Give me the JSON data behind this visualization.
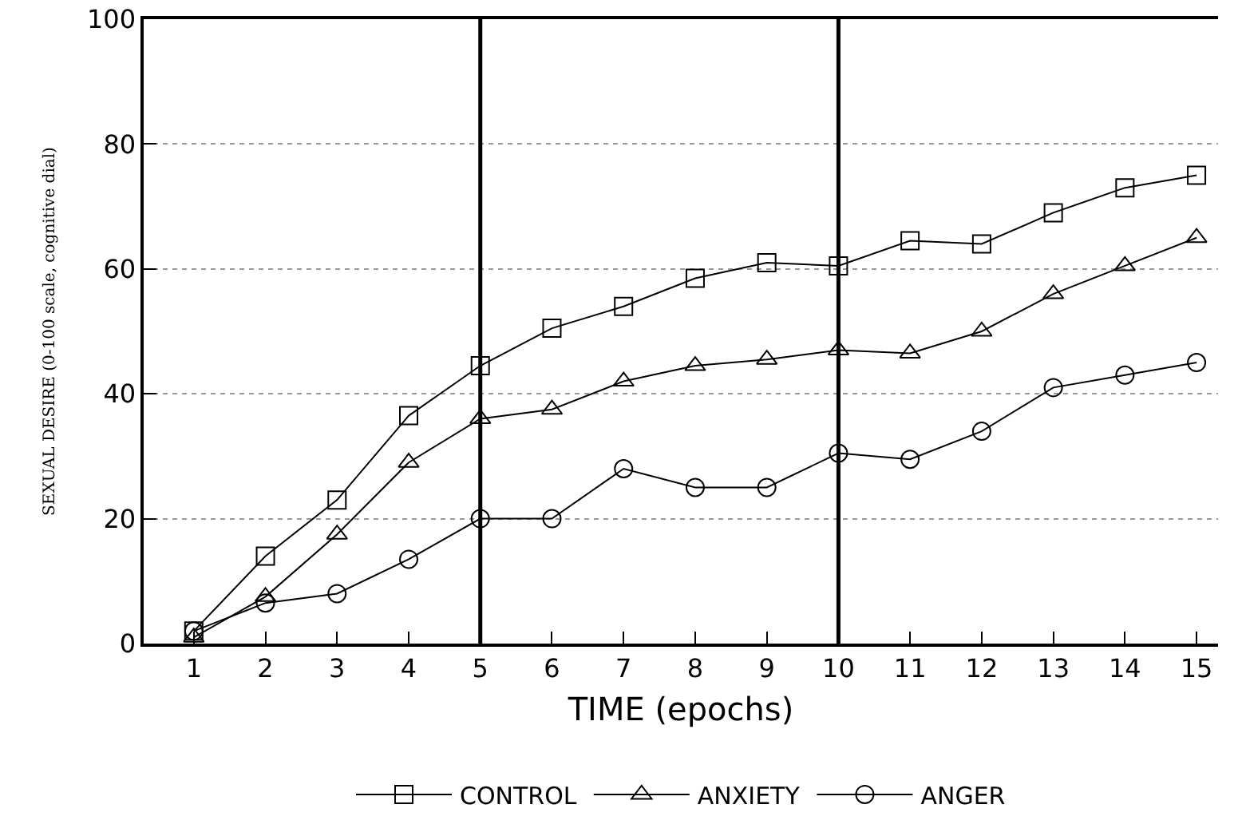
{
  "chart_data": {
    "type": "line",
    "xlabel": "TIME (epochs)",
    "ylabel": "SEXUAL DESIRE (0-100 scale, cognitive dial)",
    "x": [
      1,
      2,
      3,
      4,
      5,
      6,
      7,
      8,
      9,
      10,
      11,
      12,
      13,
      14,
      15
    ],
    "series": [
      {
        "name": "CONTROL",
        "color": "#000000",
        "marker": "square",
        "values": [
          2,
          14,
          23,
          36.5,
          44.5,
          50.5,
          54,
          58.5,
          61,
          60.5,
          64.5,
          64,
          69,
          73,
          75
        ]
      },
      {
        "name": "ANXIETY",
        "color": "#000000",
        "marker": "triangle",
        "values": [
          1,
          7.5,
          17.5,
          29,
          36,
          37.5,
          42,
          44.5,
          45.5,
          47,
          46.5,
          50,
          56,
          60.5,
          65
        ]
      },
      {
        "name": "ANGER",
        "color": "#000000",
        "marker": "circle",
        "values": [
          2,
          6.5,
          8,
          13.5,
          20,
          20,
          28,
          25,
          25,
          30.5,
          29.5,
          34,
          41,
          43,
          45
        ]
      }
    ],
    "xlim": [
      0.3,
      15.3
    ],
    "xticks": [
      1,
      2,
      3,
      4,
      5,
      6,
      7,
      8,
      9,
      10,
      11,
      12,
      13,
      14,
      15
    ],
    "ylim": [
      0,
      100
    ],
    "yticks": [
      0,
      20,
      40,
      60,
      80,
      100
    ],
    "ref_lines": [
      {
        "axis": "x",
        "value": 5,
        "color": "#000000"
      },
      {
        "axis": "x",
        "value": 10,
        "color": "#000000"
      }
    ],
    "grid": "y",
    "legend": "bottom",
    "line_style": "solid"
  }
}
